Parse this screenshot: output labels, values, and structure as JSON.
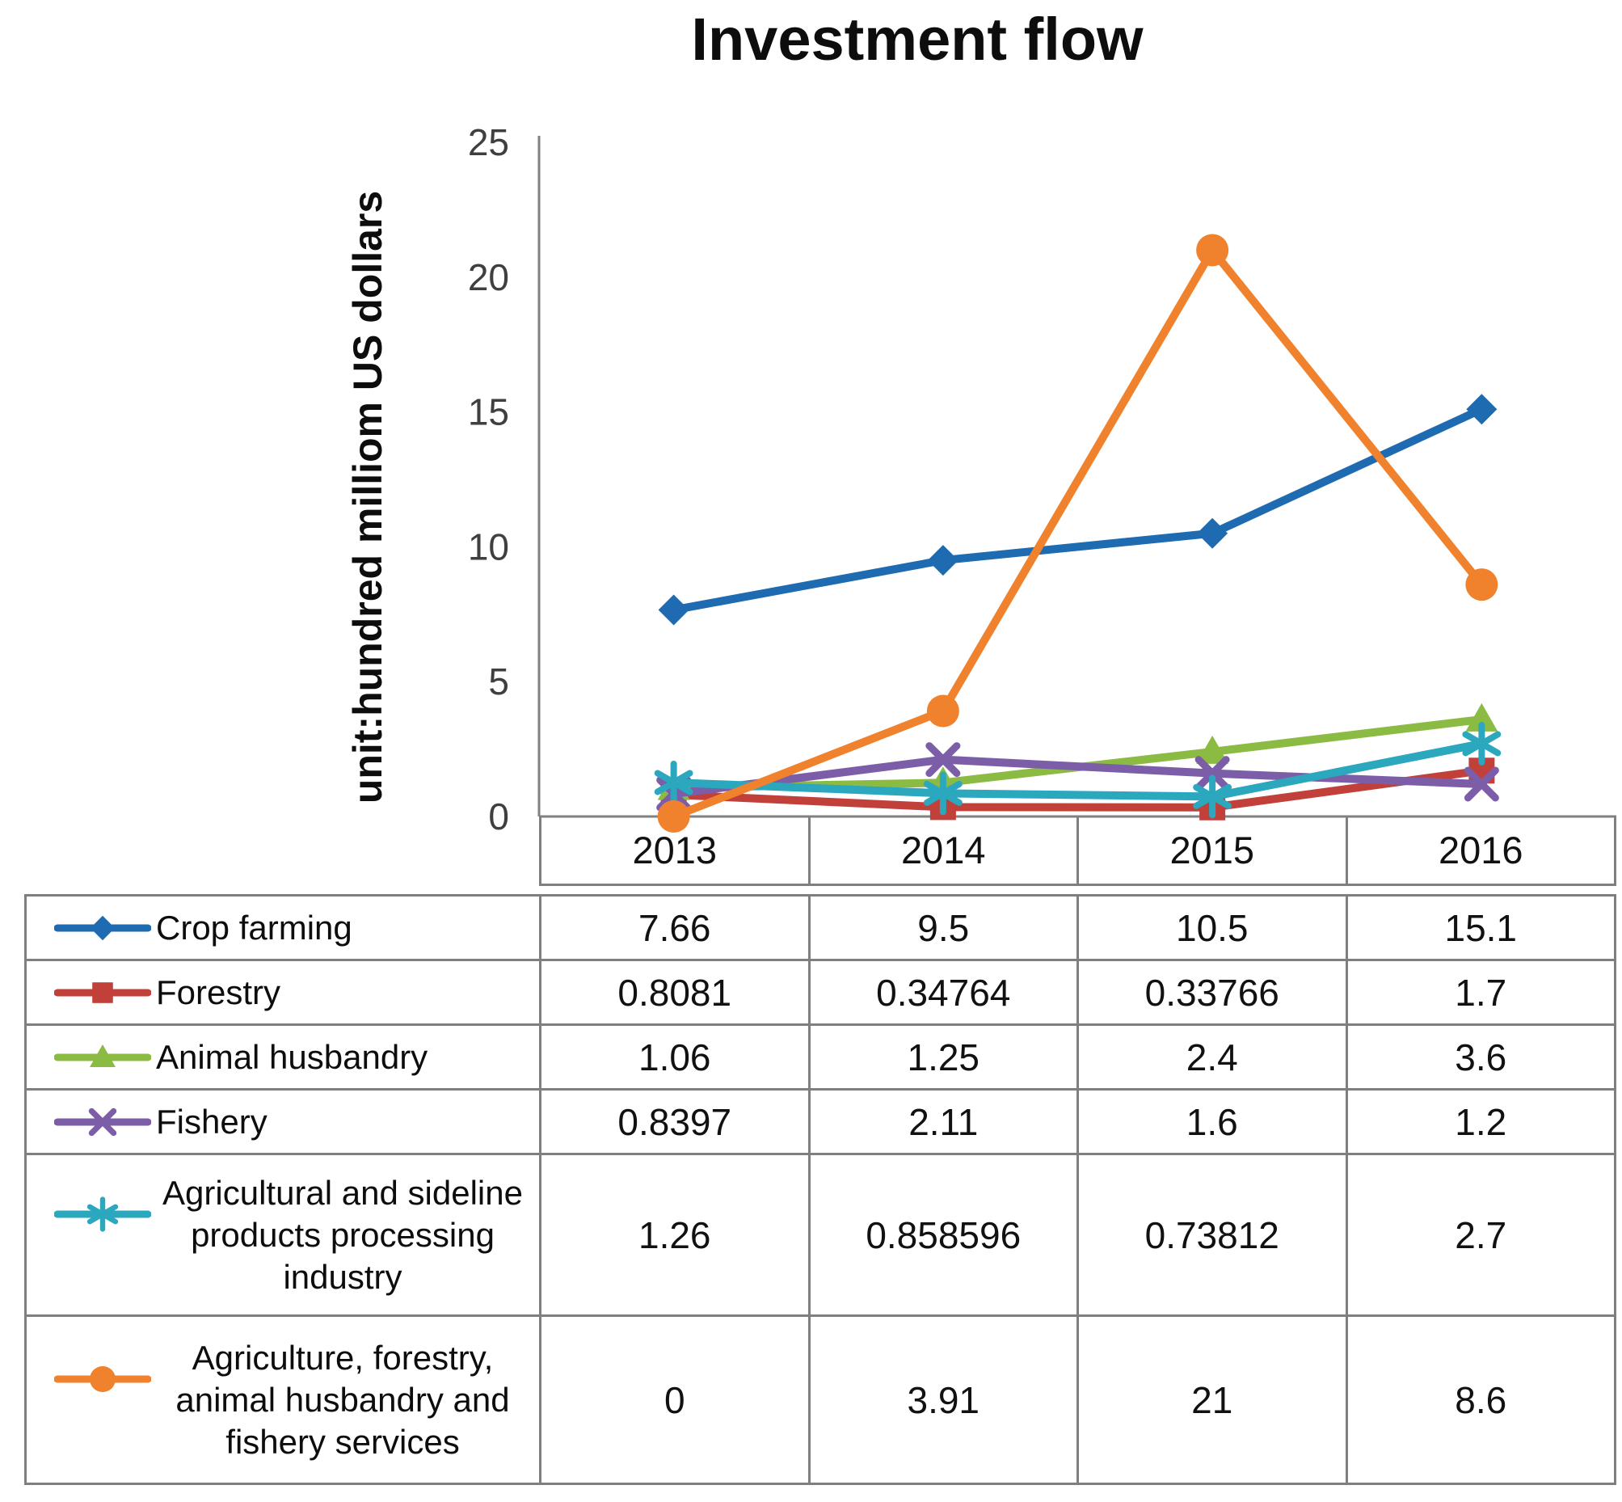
{
  "chart_data": {
    "type": "line",
    "title": "Investment flow",
    "ylabel": "unit:hundred milliom US dollars",
    "xlabel": "",
    "categories": [
      "2013",
      "2014",
      "2015",
      "2016"
    ],
    "ylim": [
      0,
      25
    ],
    "ytick_step": 5,
    "yticks": [
      0,
      5,
      10,
      15,
      20,
      25
    ],
    "grid": false,
    "legend_position": "table-left-keys",
    "series": [
      {
        "name": "Crop farming",
        "name_lines": [
          "Crop farming"
        ],
        "marker": "diamond",
        "color": "#1E6BB2",
        "values": [
          7.66,
          9.5,
          10.5,
          15.1
        ]
      },
      {
        "name": "Forestry",
        "name_lines": [
          "Forestry"
        ],
        "marker": "square",
        "color": "#C2403A",
        "values": [
          0.8081,
          0.34764,
          0.33766,
          1.7
        ]
      },
      {
        "name": "Animal husbandry",
        "name_lines": [
          "Animal husbandry"
        ],
        "marker": "triangle",
        "color": "#8CBB44",
        "values": [
          1.06,
          1.25,
          2.4,
          3.6
        ]
      },
      {
        "name": "Fishery",
        "name_lines": [
          "Fishery"
        ],
        "marker": "x",
        "color": "#7B5EA7",
        "values": [
          0.8397,
          2.11,
          1.6,
          1.2
        ]
      },
      {
        "name": "Agricultural and sideline products processing industry",
        "name_lines": [
          "Agricultural and sideline",
          "products processing",
          "industry"
        ],
        "marker": "asterisk",
        "color": "#2BA7BE",
        "values": [
          1.26,
          0.858596,
          0.73812,
          2.7
        ]
      },
      {
        "name": "Agriculture, forestry, animal husbandry and fishery services",
        "name_lines": [
          "Agriculture, forestry,",
          "animal husbandry and",
          "fishery services"
        ],
        "marker": "circle",
        "color": "#F0822D",
        "values": [
          0,
          3.91,
          21,
          8.6
        ]
      }
    ]
  },
  "colors": {
    "axis": "#808080",
    "table_border": "#7F7F7F",
    "tick_text": "#3f3f3f",
    "text": "#0d0d0d"
  }
}
